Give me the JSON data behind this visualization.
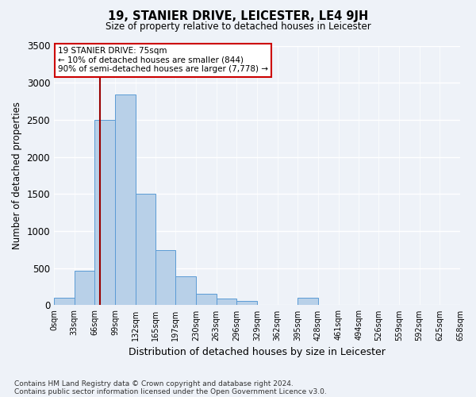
{
  "title": "19, STANIER DRIVE, LEICESTER, LE4 9JH",
  "subtitle": "Size of property relative to detached houses in Leicester",
  "xlabel": "Distribution of detached houses by size in Leicester",
  "ylabel": "Number of detached properties",
  "footnote1": "Contains HM Land Registry data © Crown copyright and database right 2024.",
  "footnote2": "Contains public sector information licensed under the Open Government Licence v3.0.",
  "annotation_line1": "19 STANIER DRIVE: 75sqm",
  "annotation_line2": "← 10% of detached houses are smaller (844)",
  "annotation_line3": "90% of semi-detached houses are larger (7,778) →",
  "bin_edges": [
    0,
    33,
    66,
    99,
    132,
    165,
    197,
    230,
    263,
    296,
    329,
    362,
    395,
    428,
    461,
    494,
    526,
    559,
    592,
    625,
    658
  ],
  "bar_heights": [
    100,
    460,
    2500,
    2840,
    1500,
    740,
    390,
    155,
    95,
    60,
    0,
    0,
    100,
    0,
    0,
    0,
    0,
    0,
    0,
    0
  ],
  "bar_color": "#b8d0e8",
  "bar_edge_color": "#5b9bd5",
  "vline_color": "#990000",
  "vline_x": 75,
  "ylim": [
    0,
    3500
  ],
  "yticks": [
    0,
    500,
    1000,
    1500,
    2000,
    2500,
    3000,
    3500
  ],
  "background_color": "#eef2f8",
  "grid_color": "#ffffff",
  "annotation_box_facecolor": "#ffffff",
  "annotation_box_edgecolor": "#cc0000"
}
